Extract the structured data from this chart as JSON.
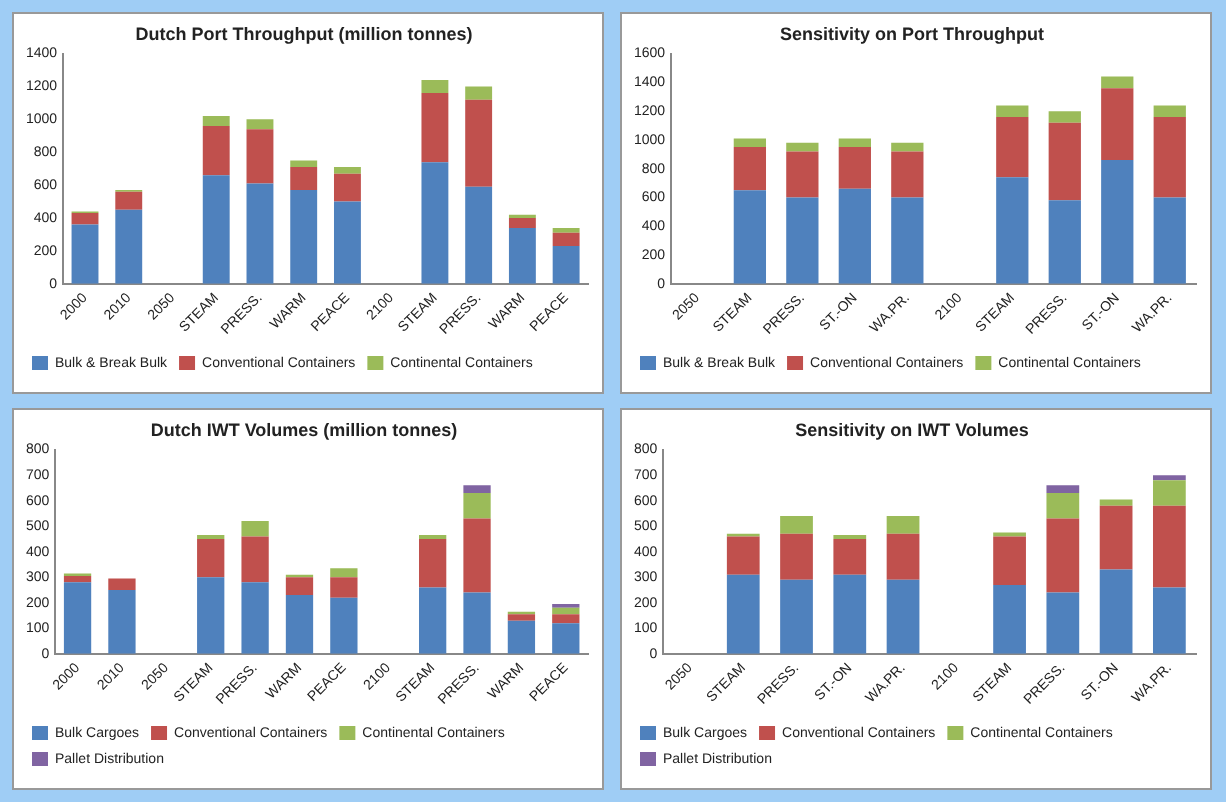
{
  "chart_data": [
    {
      "type": "bar",
      "stacked": true,
      "title": "Dutch Port Throughput (million tonnes)",
      "categories": [
        "2000",
        "2010",
        "2050",
        "STEAM",
        "PRESS.",
        "WARM",
        "PEACE",
        "2100",
        "STEAM",
        "PRESS.",
        "WARM",
        "PEACE"
      ],
      "ylim": [
        0,
        1400
      ],
      "yticks": [
        0,
        200,
        400,
        600,
        800,
        1000,
        1200,
        1400
      ],
      "grid": false,
      "legend": "bottom",
      "series": [
        {
          "name": "Bulk & Break Bulk",
          "color": "#4f81bd",
          "values": [
            360,
            450,
            null,
            660,
            610,
            570,
            500,
            null,
            740,
            590,
            340,
            230
          ]
        },
        {
          "name": "Conventional Containers",
          "color": "#c0504d",
          "values": [
            70,
            110,
            null,
            300,
            330,
            140,
            170,
            null,
            420,
            530,
            60,
            80
          ]
        },
        {
          "name": "Continental Containers",
          "color": "#9bbb59",
          "values": [
            10,
            10,
            null,
            60,
            60,
            40,
            40,
            null,
            80,
            80,
            20,
            30
          ]
        }
      ]
    },
    {
      "type": "bar",
      "stacked": true,
      "title": "Sensitivity on Port Throughput",
      "categories": [
        "2050",
        "STEAM",
        "PRESS.",
        "ST.-ON",
        "WA.PR.",
        "2100",
        "STEAM",
        "PRESS.",
        "ST.-ON",
        "WA.PR."
      ],
      "ylim": [
        0,
        1600
      ],
      "yticks": [
        0,
        200,
        400,
        600,
        800,
        1000,
        1200,
        1400,
        1600
      ],
      "grid": false,
      "legend": "bottom",
      "series": [
        {
          "name": "Bulk & Break Bulk",
          "color": "#4f81bd",
          "values": [
            null,
            650,
            600,
            660,
            600,
            null,
            740,
            580,
            860,
            600
          ]
        },
        {
          "name": "Conventional Containers",
          "color": "#c0504d",
          "values": [
            null,
            300,
            320,
            290,
            320,
            null,
            420,
            540,
            500,
            560
          ]
        },
        {
          "name": "Continental Containers",
          "color": "#9bbb59",
          "values": [
            null,
            60,
            60,
            60,
            60,
            null,
            80,
            80,
            80,
            80
          ]
        }
      ]
    },
    {
      "type": "bar",
      "stacked": true,
      "title": "Dutch IWT Volumes (million tonnes)",
      "categories": [
        "2000",
        "2010",
        "2050",
        "STEAM",
        "PRESS.",
        "WARM",
        "PEACE",
        "2100",
        "STEAM",
        "PRESS.",
        "WARM",
        "PEACE"
      ],
      "ylim": [
        0,
        800
      ],
      "yticks": [
        0,
        100,
        200,
        300,
        400,
        500,
        600,
        700,
        800
      ],
      "grid": false,
      "legend": "bottom",
      "series": [
        {
          "name": "Bulk Cargoes",
          "color": "#4f81bd",
          "values": [
            280,
            250,
            null,
            300,
            280,
            230,
            220,
            null,
            260,
            240,
            130,
            120
          ]
        },
        {
          "name": "Conventional Containers",
          "color": "#c0504d",
          "values": [
            25,
            45,
            null,
            150,
            180,
            70,
            80,
            null,
            190,
            290,
            25,
            35
          ]
        },
        {
          "name": "Continental Containers",
          "color": "#9bbb59",
          "values": [
            10,
            null,
            null,
            15,
            60,
            10,
            35,
            null,
            15,
            100,
            10,
            25
          ]
        },
        {
          "name": "Pallet Distribution",
          "color": "#8064a2",
          "values": [
            null,
            null,
            null,
            null,
            null,
            null,
            null,
            null,
            null,
            30,
            null,
            15
          ]
        }
      ]
    },
    {
      "type": "bar",
      "stacked": true,
      "title": "Sensitivity on IWT Volumes",
      "categories": [
        "2050",
        "STEAM",
        "PRESS.",
        "ST.-ON",
        "WA.PR.",
        "2100",
        "STEAM",
        "PRESS.",
        "ST.-ON",
        "WA.PR."
      ],
      "ylim": [
        0,
        800
      ],
      "yticks": [
        0,
        100,
        200,
        300,
        400,
        500,
        600,
        700,
        800
      ],
      "grid": false,
      "legend": "bottom",
      "series": [
        {
          "name": "Bulk Cargoes",
          "color": "#4f81bd",
          "values": [
            null,
            310,
            290,
            310,
            290,
            null,
            270,
            240,
            330,
            260
          ]
        },
        {
          "name": "Conventional Containers",
          "color": "#c0504d",
          "values": [
            null,
            150,
            180,
            140,
            180,
            null,
            190,
            290,
            250,
            320
          ]
        },
        {
          "name": "Continental Containers",
          "color": "#9bbb59",
          "values": [
            null,
            10,
            70,
            15,
            70,
            null,
            15,
            100,
            25,
            100
          ]
        },
        {
          "name": "Pallet Distribution",
          "color": "#8064a2",
          "values": [
            null,
            null,
            null,
            null,
            null,
            null,
            null,
            30,
            null,
            20
          ]
        }
      ]
    }
  ]
}
